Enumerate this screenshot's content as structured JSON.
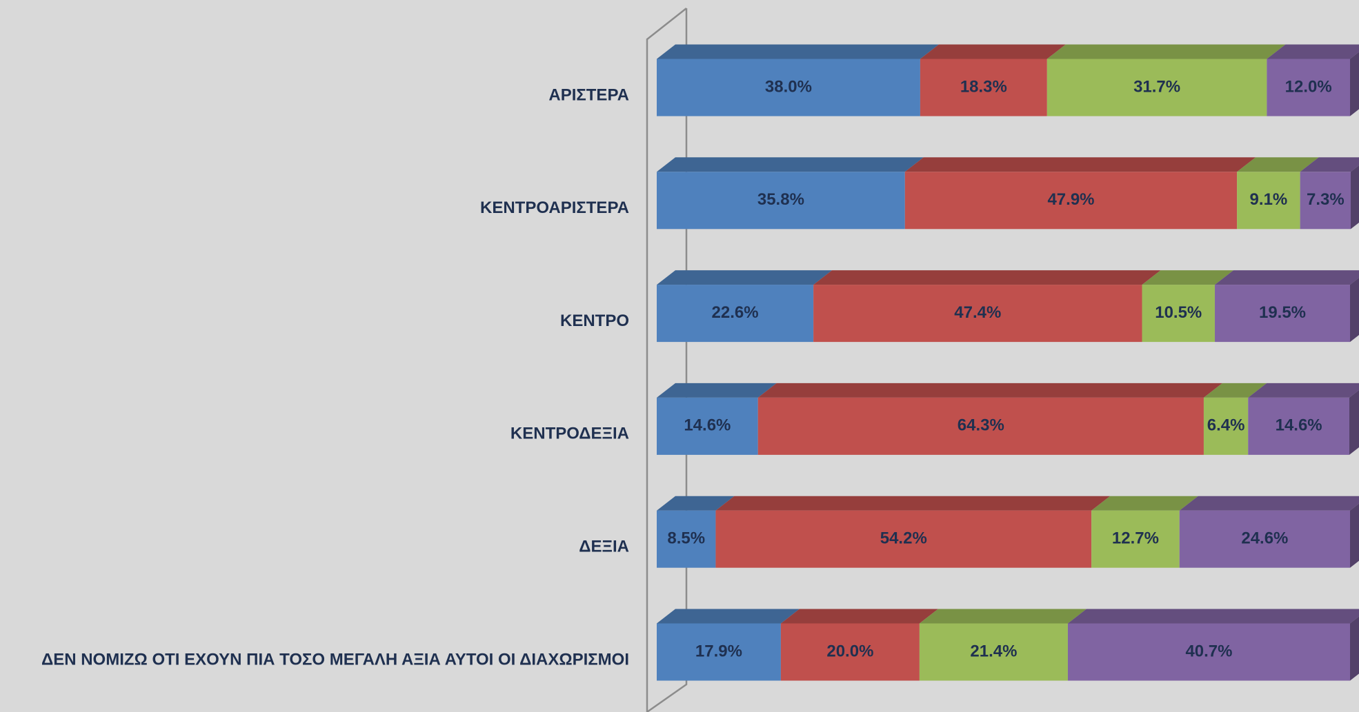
{
  "chart_data": {
    "type": "stacked-bar-horizontal-3d",
    "categories": [
      "ΑΡΙΣΤΕΡΑ",
      "ΚΕΝΤΡΟΑΡΙΣΤΕΡΑ",
      "ΚΕΝΤΡΟ",
      "ΚΕΝΤΡΟΔΕΞΙΑ",
      "ΔΕΞΙΑ",
      "ΔΕΝ ΝΟΜΙΖΩ ΟΤΙ ΕΧΟΥΝ ΠΙΑ ΤΟΣΟ ΜΕΓΑΛΗ ΑΞΙΑ ΑΥΤΟΙ ΟΙ ΔΙΑΧΩΡΙΣΜΟΙ"
    ],
    "series": [
      {
        "color": "#4f81bd",
        "values": [
          38.0,
          35.8,
          22.6,
          14.6,
          8.5,
          17.9
        ],
        "value_labels": [
          "38.0%",
          "35.8%",
          "22.6%",
          "14.6%",
          "8.5%",
          "17.9%"
        ]
      },
      {
        "color": "#c0504d",
        "values": [
          18.3,
          47.9,
          47.4,
          64.3,
          54.2,
          20.0
        ],
        "value_labels": [
          "18.3%",
          "47.9%",
          "47.4%",
          "64.3%",
          "54.2%",
          "20.0%"
        ]
      },
      {
        "color": "#9bbb59",
        "values": [
          31.7,
          9.1,
          10.5,
          6.4,
          12.7,
          21.4
        ],
        "value_labels": [
          "31.7%",
          "9.1%",
          "10.5%",
          "6.4%",
          "12.7%",
          "21.4%"
        ]
      },
      {
        "color": "#8064a2",
        "values": [
          12.0,
          7.3,
          19.5,
          14.6,
          24.6,
          40.7
        ],
        "value_labels": [
          "12.0%",
          "7.3%",
          "19.5%",
          "14.6%",
          "24.6%",
          "40.7%"
        ]
      }
    ],
    "xlim": [
      0,
      100
    ]
  }
}
